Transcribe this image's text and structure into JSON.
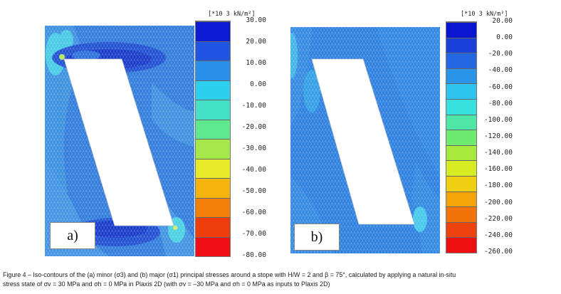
{
  "panels": [
    {
      "label": "a)",
      "unit": "[*10 3 kN/m²]",
      "scale_ticks": [
        "30.00",
        "20.00",
        "10.00",
        "0.00",
        "-10.00",
        "-20.00",
        "-30.00",
        "-40.00",
        "-50.00",
        "-60.00",
        "-70.00",
        "-80.00"
      ],
      "scale_colors": [
        "#0b1cd2",
        "#1f55e0",
        "#2a8fe6",
        "#2cd0ee",
        "#45e0c8",
        "#5ee890",
        "#a6e84a",
        "#e8ea2a",
        "#f4b40c",
        "#f27f08",
        "#ee3e0c",
        "#ef0e14"
      ]
    },
    {
      "label": "b)",
      "unit": "[*10 3 kN/m²]",
      "scale_ticks": [
        "20.00",
        "0.00",
        "-20.00",
        "-40.00",
        "-60.00",
        "-80.00",
        "-100.00",
        "-120.00",
        "-140.00",
        "-160.00",
        "-180.00",
        "-200.00",
        "-220.00",
        "-240.00",
        "-260.00"
      ],
      "scale_colors": [
        "#0a16d0",
        "#1a40dc",
        "#2266e2",
        "#2a94e8",
        "#2cc4ee",
        "#36e0dc",
        "#4ee6a6",
        "#6eea6e",
        "#a6ea3e",
        "#d8ec22",
        "#f0d012",
        "#f4a408",
        "#f27408",
        "#ee420c",
        "#ee1010"
      ]
    }
  ],
  "caption": {
    "line1": "Figure 4 – Iso-contours of the (a) minor (σ3) and (b) major (σ1) principal stresses around a stope with H/W = 2 and β = 75°, calculated by applying a natural in-situ",
    "line2": "stress state of σv = 30 MPa and σh = 0 MPa in Plaxis 2D (with σv = –30 MPa and σh = 0 MPa as inputs to Plaxis 2D)"
  }
}
